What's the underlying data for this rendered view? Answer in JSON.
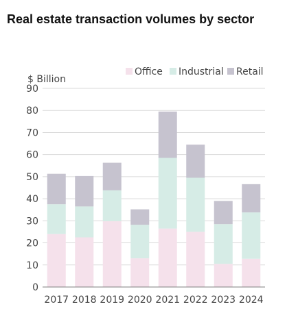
{
  "chart_data": {
    "type": "bar",
    "stacked": true,
    "title": "Real estate transaction volumes by sector",
    "y_unit_label": "$ Billion",
    "xlabel": "",
    "ylabel": "",
    "ylim": [
      0,
      90
    ],
    "y_ticks": [
      0,
      10,
      20,
      30,
      40,
      50,
      60,
      70,
      80,
      90
    ],
    "grid": true,
    "legend_position": "top-right",
    "categories": [
      "2017",
      "2018",
      "2019",
      "2020",
      "2021",
      "2022",
      "2023",
      "2024"
    ],
    "series": [
      {
        "name": "Office",
        "color": "#f5e1eb",
        "values": [
          24.0,
          22.5,
          29.8,
          13.0,
          26.5,
          25.0,
          10.5,
          12.8
        ]
      },
      {
        "name": "Industrial",
        "color": "#d6ece6",
        "values": [
          13.5,
          14.0,
          14.0,
          15.2,
          32.0,
          24.5,
          18.0,
          21.0
        ]
      },
      {
        "name": "Retail",
        "color": "#c6c3cf",
        "values": [
          13.8,
          13.8,
          12.5,
          7.0,
          21.0,
          15.0,
          10.5,
          12.8
        ]
      }
    ]
  }
}
